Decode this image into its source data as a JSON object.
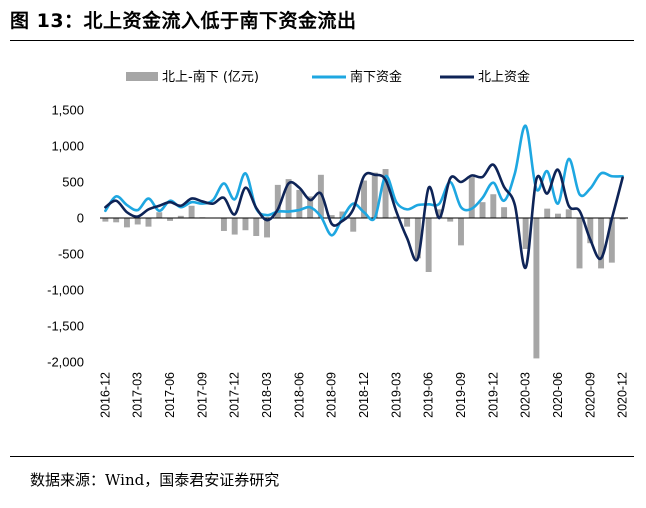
{
  "figure": {
    "title": "图 13：北上资金流入低于南下资金流出",
    "source": "数据来源：Wind，国泰君安证券研究"
  },
  "colors": {
    "bar": "#a6a6a6",
    "south": "#1ea7e1",
    "north": "#0e2457"
  },
  "chart_data": {
    "type": "bar+line",
    "legend_position": "top",
    "grid": false,
    "ylim": [
      -2000,
      1500
    ],
    "y_ticks": [
      "1,500",
      "1,000",
      "500",
      "0",
      "-500",
      "-1,000",
      "-1,500",
      "-2,000"
    ],
    "y_tick_values": [
      1500,
      1000,
      500,
      0,
      -500,
      -1000,
      -1500,
      -2000
    ],
    "x_tick_labels": [
      "2016-12",
      "2017-03",
      "2017-06",
      "2017-09",
      "2017-12",
      "2018-03",
      "2018-06",
      "2018-09",
      "2018-12",
      "2019-03",
      "2019-06",
      "2019-09",
      "2019-12",
      "2020-03",
      "2020-06",
      "2020-09",
      "2020-12"
    ],
    "categories": [
      "2016-12",
      "2017-01",
      "2017-02",
      "2017-03",
      "2017-04",
      "2017-05",
      "2017-06",
      "2017-07",
      "2017-08",
      "2017-09",
      "2017-10",
      "2017-11",
      "2017-12",
      "2018-01",
      "2018-02",
      "2018-03",
      "2018-04",
      "2018-05",
      "2018-06",
      "2018-07",
      "2018-08",
      "2018-09",
      "2018-10",
      "2018-11",
      "2018-12",
      "2019-01",
      "2019-02",
      "2019-03",
      "2019-04",
      "2019-05",
      "2019-06",
      "2019-07",
      "2019-08",
      "2019-09",
      "2019-10",
      "2019-11",
      "2019-12",
      "2020-01",
      "2020-02",
      "2020-03",
      "2020-04",
      "2020-05",
      "2020-06",
      "2020-07",
      "2020-08",
      "2020-09",
      "2020-10",
      "2020-11",
      "2020-12"
    ],
    "series": [
      {
        "name": "北上-南下 (亿元)",
        "type": "bar",
        "values": [
          -50,
          -60,
          -130,
          -90,
          -120,
          80,
          -40,
          30,
          170,
          10,
          0,
          -180,
          -230,
          -170,
          -250,
          -270,
          460,
          540,
          390,
          300,
          600,
          40,
          90,
          -190,
          520,
          630,
          680,
          20,
          -120,
          -560,
          -750,
          120,
          -50,
          -380,
          570,
          220,
          330,
          150,
          0,
          -430,
          -1950,
          130,
          60,
          120,
          -700,
          -350,
          -700,
          -620,
          -20
        ]
      },
      {
        "name": "南下资金",
        "type": "line",
        "values": [
          100,
          300,
          180,
          110,
          270,
          100,
          240,
          150,
          220,
          200,
          250,
          480,
          260,
          620,
          130,
          40,
          90,
          90,
          110,
          150,
          20,
          -240,
          0,
          200,
          80,
          0,
          580,
          220,
          120,
          180,
          190,
          200,
          500,
          150,
          130,
          280,
          490,
          240,
          620,
          1280,
          400,
          650,
          200,
          820,
          330,
          410,
          620,
          580,
          580
        ]
      },
      {
        "name": "北上资金",
        "type": "line",
        "values": [
          150,
          240,
          80,
          20,
          120,
          170,
          220,
          170,
          270,
          230,
          200,
          280,
          50,
          420,
          140,
          -30,
          120,
          480,
          420,
          250,
          340,
          -80,
          -40,
          120,
          580,
          600,
          530,
          90,
          -280,
          -560,
          420,
          0,
          550,
          500,
          590,
          570,
          740,
          430,
          180,
          -690,
          540,
          340,
          670,
          170,
          100,
          -300,
          -560,
          -10,
          560
        ]
      }
    ]
  }
}
